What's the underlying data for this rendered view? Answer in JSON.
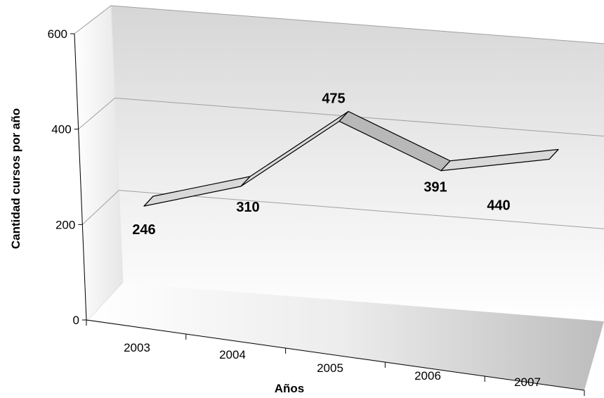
{
  "chart_data": {
    "type": "line",
    "title": "",
    "xlabel": "Años",
    "ylabel": "Cantidad cursos por año",
    "categories": [
      "2003",
      "2004",
      "2005",
      "2006",
      "2007"
    ],
    "values": [
      246,
      310,
      475,
      391,
      440
    ],
    "ylim": [
      0,
      600
    ],
    "yticks": [
      0,
      200,
      400,
      600
    ],
    "grid": true,
    "legend": "none",
    "style": "3d-ribbon",
    "colors": {
      "ribbon": "#b8b8b8",
      "ribbon_side": "#d9d9d9",
      "wall": "#e0e0e0",
      "floor": "#cfcfcf",
      "grid": "#a0a0a0"
    }
  }
}
